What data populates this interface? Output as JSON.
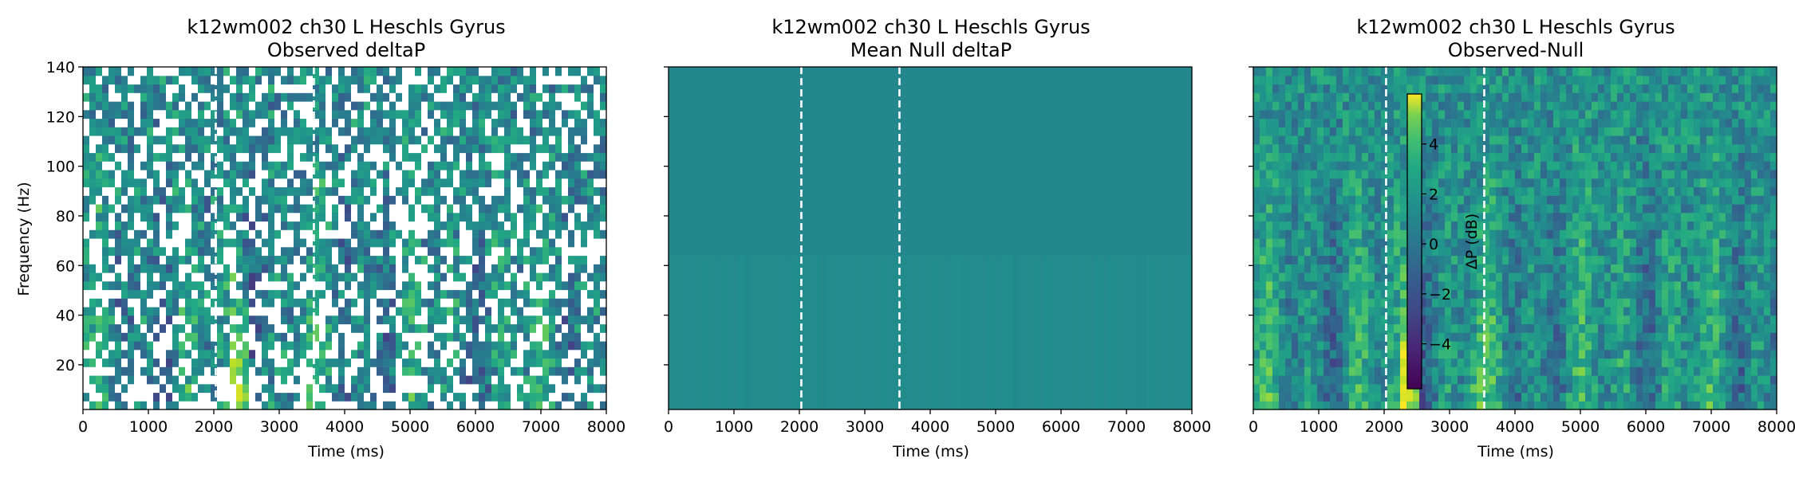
{
  "chart_data": [
    {
      "type": "heatmap",
      "title": "k12wm002 ch30 L Heschls Gyrus",
      "subtitle": "Observed deltaP",
      "xlabel": "Time (ms)",
      "ylabel": "Frequency (Hz)",
      "xlim": [
        0,
        8000
      ],
      "ylim": [
        2,
        140
      ],
      "x_ticks": [
        "0",
        "1000",
        "2000",
        "3000",
        "4000",
        "5000",
        "6000",
        "7000",
        "8000"
      ],
      "y_ticks": [
        "20",
        "40",
        "60",
        "80",
        "100",
        "120",
        "140"
      ],
      "event_lines_ms": [
        2030,
        3530
      ],
      "colormap": "viridis",
      "masked_non_significant": true
    },
    {
      "type": "heatmap",
      "title": "k12wm002 ch30 L Heschls Gyrus",
      "subtitle": "Mean Null deltaP",
      "xlabel": "Time (ms)",
      "xlim": [
        0,
        8000
      ],
      "ylim": [
        2,
        140
      ],
      "x_ticks": [
        "0",
        "1000",
        "2000",
        "3000",
        "4000",
        "5000",
        "6000",
        "7000",
        "8000"
      ],
      "event_lines_ms": [
        2030,
        3530
      ],
      "colormap": "viridis"
    },
    {
      "type": "heatmap",
      "title": "k12wm002 ch30 L Heschls Gyrus",
      "subtitle": "Observed-Null",
      "xlabel": "Time (ms)",
      "xlim": [
        0,
        8000
      ],
      "ylim": [
        2,
        140
      ],
      "x_ticks": [
        "0",
        "1000",
        "2000",
        "3000",
        "4000",
        "5000",
        "6000",
        "7000",
        "8000"
      ],
      "event_lines_ms": [
        2030,
        3530
      ],
      "colormap": "viridis",
      "colorbar": {
        "label": "ΔP (dB)",
        "range": [
          -5.8,
          6
        ],
        "ticks": [
          "4",
          "2",
          "0",
          "−2",
          "−4"
        ]
      }
    }
  ]
}
